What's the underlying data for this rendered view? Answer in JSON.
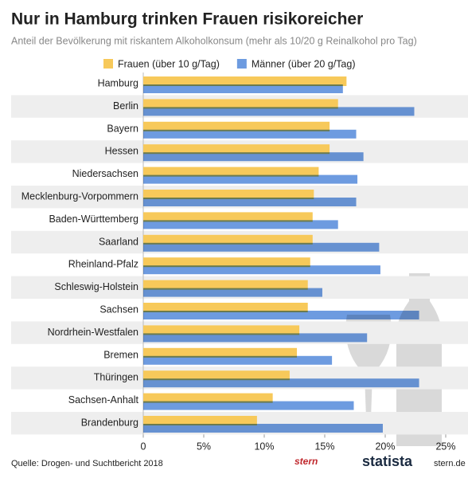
{
  "chart_data": {
    "type": "bar",
    "orientation": "horizontal",
    "title": "Nur in Hamburg trinken Frauen risikoreicher",
    "subtitle": "Anteil der Bevölkerung mit riskantem Alkoholkonsum (mehr als 10/20 g Reinalkohol pro Tag)",
    "categories": [
      "Hamburg",
      "Berlin",
      "Bayern",
      "Hessen",
      "Niedersachsen",
      "Mecklenburg-Vorpommern",
      "Baden-Württemberg",
      "Saarland",
      "Rheinland-Pfalz",
      "Schleswig-Holstein",
      "Sachsen",
      "Nordrhein-Westfalen",
      "Bremen",
      "Thüringen",
      "Sachsen-Anhalt",
      "Brandenburg"
    ],
    "series": [
      {
        "name": "Frauen (über 10 g/Tag)",
        "color": "#f7c95a",
        "values": [
          16.8,
          16.1,
          15.4,
          15.4,
          14.5,
          14.1,
          14.0,
          14.0,
          13.8,
          13.6,
          13.6,
          12.9,
          12.7,
          12.1,
          10.7,
          9.4
        ]
      },
      {
        "name": "Männer (über 20 g/Tag)",
        "color": "#6d9be0",
        "values": [
          16.5,
          22.4,
          17.6,
          18.2,
          17.7,
          17.6,
          16.1,
          19.5,
          19.6,
          14.8,
          22.8,
          18.5,
          15.6,
          22.8,
          17.4,
          19.8
        ]
      }
    ],
    "xlim": [
      0,
      25
    ],
    "xticks": [
      0,
      {
        "value": 5,
        "label": "5%"
      },
      {
        "value": 10,
        "label": "10%"
      },
      {
        "value": 15,
        "label": "15%"
      },
      {
        "value": 20,
        "label": "20%"
      },
      {
        "value": 25,
        "label": "25%"
      }
    ],
    "grid": false,
    "source": "Quelle: Drogen- und Suchtbericht 2018",
    "logos": [
      "stern",
      "statista",
      "stern.de"
    ]
  }
}
